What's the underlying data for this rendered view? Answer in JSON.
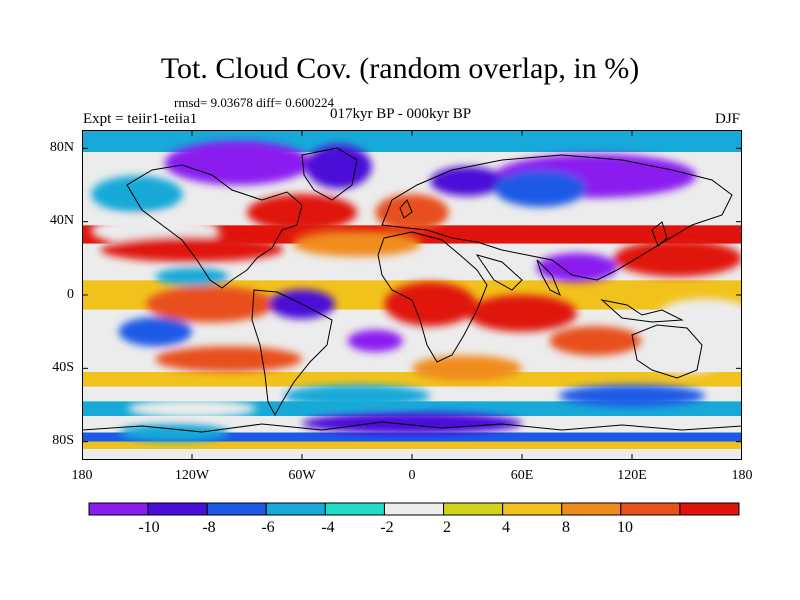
{
  "header": {
    "title": "Tot. Cloud Cov. (random overlap, in %)",
    "stats": "rmsd= 9.03678 diff= 0.600224",
    "experiment": "Expt = teiir1-teiia1",
    "period": "017kyr BP - 000kyr BP",
    "season": "DJF"
  },
  "axes": {
    "y_labels": [
      "80N",
      "40N",
      "0",
      "40S",
      "80S"
    ],
    "x_labels": [
      "180",
      "120W",
      "60W",
      "0",
      "60E",
      "120E",
      "180"
    ]
  },
  "colorbar": {
    "labels": [
      "-10",
      "-8",
      "-6",
      "-4",
      "-2",
      "2",
      "4",
      "8",
      "10"
    ],
    "colors": [
      "#8a1cf0",
      "#4b0ed8",
      "#1c5ae6",
      "#17a9d8",
      "#20dcc6",
      "#ececec",
      "#d2d21c",
      "#f2c21c",
      "#f08c1c",
      "#e8501c",
      "#e0140c"
    ]
  },
  "chart_data": {
    "type": "heatmap",
    "title": "Tot. Cloud Cov. (random overlap, in %)",
    "xlim": [
      -180,
      180
    ],
    "ylim": [
      -90,
      90
    ],
    "levels": [
      -10,
      -8,
      -6,
      -4,
      -2,
      2,
      4,
      8,
      10
    ],
    "blobs": [
      {
        "lon": -95,
        "lat": 72,
        "color": "#8a1cf0",
        "lr": 40,
        "lt": 12
      },
      {
        "lon": -40,
        "lat": 70,
        "color": "#4b0ed8",
        "lr": 18,
        "lt": 12
      },
      {
        "lon": 100,
        "lat": 65,
        "color": "#8a1cf0",
        "lr": 55,
        "lt": 12
      },
      {
        "lon": 30,
        "lat": 62,
        "color": "#4b0ed8",
        "lr": 20,
        "lt": 8
      },
      {
        "lon": 70,
        "lat": 58,
        "color": "#1c5ae6",
        "lr": 25,
        "lt": 10
      },
      {
        "lon": -150,
        "lat": 55,
        "color": "#17a9d8",
        "lr": 25,
        "lt": 10
      },
      {
        "lon": -60,
        "lat": 45,
        "color": "#e0140c",
        "lr": 30,
        "lt": 10
      },
      {
        "lon": 0,
        "lat": 45,
        "color": "#e8501c",
        "lr": 20,
        "lt": 10
      },
      {
        "lon": -140,
        "lat": 35,
        "color": "#ececec",
        "lr": 35,
        "lt": 8
      },
      {
        "lon": -120,
        "lat": 25,
        "color": "#e0140c",
        "lr": 50,
        "lt": 7
      },
      {
        "lon": -30,
        "lat": 28,
        "color": "#f08c1c",
        "lr": 35,
        "lt": 7
      },
      {
        "lon": 145,
        "lat": 20,
        "color": "#e0140c",
        "lr": 35,
        "lt": 10
      },
      {
        "lon": 90,
        "lat": 15,
        "color": "#8a1cf0",
        "lr": 22,
        "lt": 8
      },
      {
        "lon": -120,
        "lat": 10,
        "color": "#17a9d8",
        "lr": 20,
        "lt": 5
      },
      {
        "lon": -110,
        "lat": -5,
        "color": "#e8501c",
        "lr": 35,
        "lt": 10
      },
      {
        "lon": -60,
        "lat": -5,
        "color": "#4b0ed8",
        "lr": 18,
        "lt": 8
      },
      {
        "lon": 10,
        "lat": -5,
        "color": "#e0140c",
        "lr": 25,
        "lt": 12
      },
      {
        "lon": 60,
        "lat": -10,
        "color": "#e0140c",
        "lr": 30,
        "lt": 10
      },
      {
        "lon": 160,
        "lat": -10,
        "color": "#ececec",
        "lr": 25,
        "lt": 8
      },
      {
        "lon": -140,
        "lat": -20,
        "color": "#1c5ae6",
        "lr": 20,
        "lt": 8
      },
      {
        "lon": -20,
        "lat": -25,
        "color": "#8a1cf0",
        "lr": 15,
        "lt": 6
      },
      {
        "lon": 100,
        "lat": -25,
        "color": "#e8501c",
        "lr": 25,
        "lt": 8
      },
      {
        "lon": -100,
        "lat": -35,
        "color": "#e8501c",
        "lr": 40,
        "lt": 7
      },
      {
        "lon": 30,
        "lat": -40,
        "color": "#f08c1c",
        "lr": 30,
        "lt": 7
      },
      {
        "lon": 150,
        "lat": -35,
        "color": "#ececec",
        "lr": 20,
        "lt": 8
      },
      {
        "lon": -30,
        "lat": -55,
        "color": "#17a9d8",
        "lr": 40,
        "lt": 6
      },
      {
        "lon": 120,
        "lat": -55,
        "color": "#1c5ae6",
        "lr": 40,
        "lt": 6
      },
      {
        "lon": -120,
        "lat": -62,
        "color": "#ececec",
        "lr": 35,
        "lt": 5
      },
      {
        "lon": 0,
        "lat": -70,
        "color": "#4b0ed8",
        "lr": 60,
        "lt": 6
      },
      {
        "lon": -130,
        "lat": -75,
        "color": "#17a9d8",
        "lr": 30,
        "lt": 5
      }
    ]
  }
}
